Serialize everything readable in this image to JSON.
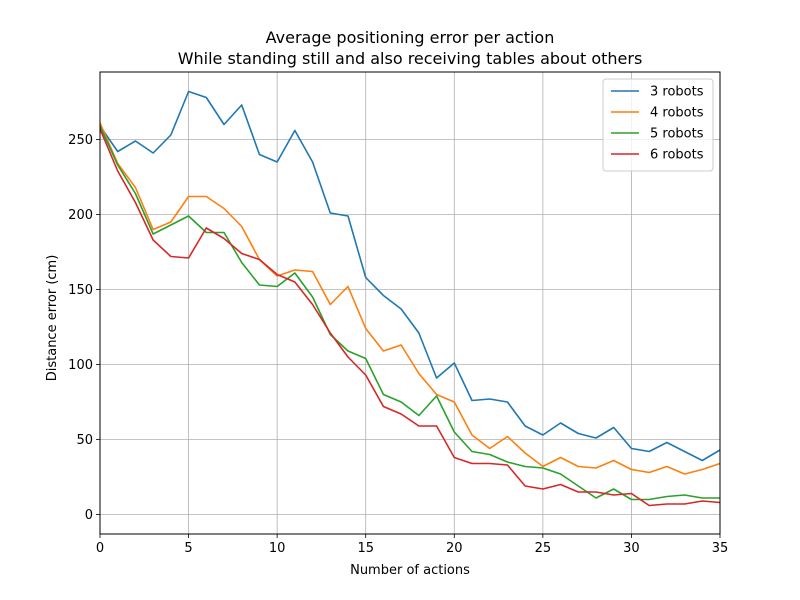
{
  "chart_data": {
    "type": "line",
    "title": "Average positioning error per action",
    "subtitle": "While standing still and also receiving tables about others",
    "xlabel": "Number of actions",
    "ylabel": "Distance error (cm)",
    "xlim": [
      0,
      35
    ],
    "ylim": [
      -13,
      295
    ],
    "xticks": [
      0,
      5,
      10,
      15,
      20,
      25,
      30,
      35
    ],
    "yticks": [
      0,
      50,
      100,
      150,
      200,
      250
    ],
    "xtick_labels": [
      "0",
      "5",
      "10",
      "15",
      "20",
      "25",
      "30",
      "35"
    ],
    "ytick_labels": [
      "0",
      "50",
      "100",
      "150",
      "200",
      "250"
    ],
    "grid": true,
    "legend_position": "top-right",
    "x": [
      0,
      1,
      2,
      3,
      4,
      5,
      6,
      7,
      8,
      9,
      10,
      11,
      12,
      13,
      14,
      15,
      16,
      17,
      18,
      19,
      20,
      21,
      22,
      23,
      24,
      25,
      26,
      27,
      28,
      29,
      30,
      31,
      32,
      33,
      34,
      35
    ],
    "series": [
      {
        "name": "3 robots",
        "color": "#1f77b4",
        "values": [
          259,
          242,
          249,
          241,
          253,
          282,
          278,
          260,
          273,
          240,
          235,
          256,
          235,
          201,
          199,
          158,
          146,
          137,
          121,
          91,
          101,
          76,
          77,
          75,
          59,
          53,
          61,
          54,
          51,
          58,
          44,
          42,
          48,
          42,
          36,
          43
        ]
      },
      {
        "name": "4 robots",
        "color": "#ff7f0e",
        "values": [
          261,
          234,
          218,
          190,
          195,
          212,
          212,
          204,
          192,
          170,
          159,
          163,
          162,
          140,
          152,
          124,
          109,
          113,
          94,
          80,
          75,
          53,
          44,
          52,
          41,
          32,
          38,
          32,
          31,
          36,
          30,
          28,
          32,
          27,
          30,
          34
        ]
      },
      {
        "name": "5 robots",
        "color": "#2ca02c",
        "values": [
          259,
          233,
          214,
          187,
          193,
          199,
          188,
          188,
          168,
          153,
          152,
          161,
          145,
          120,
          109,
          104,
          80,
          75,
          66,
          79,
          55,
          42,
          40,
          35,
          32,
          31,
          27,
          19,
          11,
          17,
          10,
          10,
          12,
          13,
          11,
          11
        ]
      },
      {
        "name": "6 robots",
        "color": "#d62728",
        "values": [
          257,
          229,
          208,
          183,
          172,
          171,
          191,
          184,
          174,
          170,
          160,
          155,
          140,
          121,
          105,
          93,
          72,
          67,
          59,
          59,
          38,
          34,
          34,
          33,
          19,
          17,
          20,
          15,
          15,
          13,
          14,
          6,
          7,
          7,
          9,
          8
        ]
      }
    ]
  }
}
